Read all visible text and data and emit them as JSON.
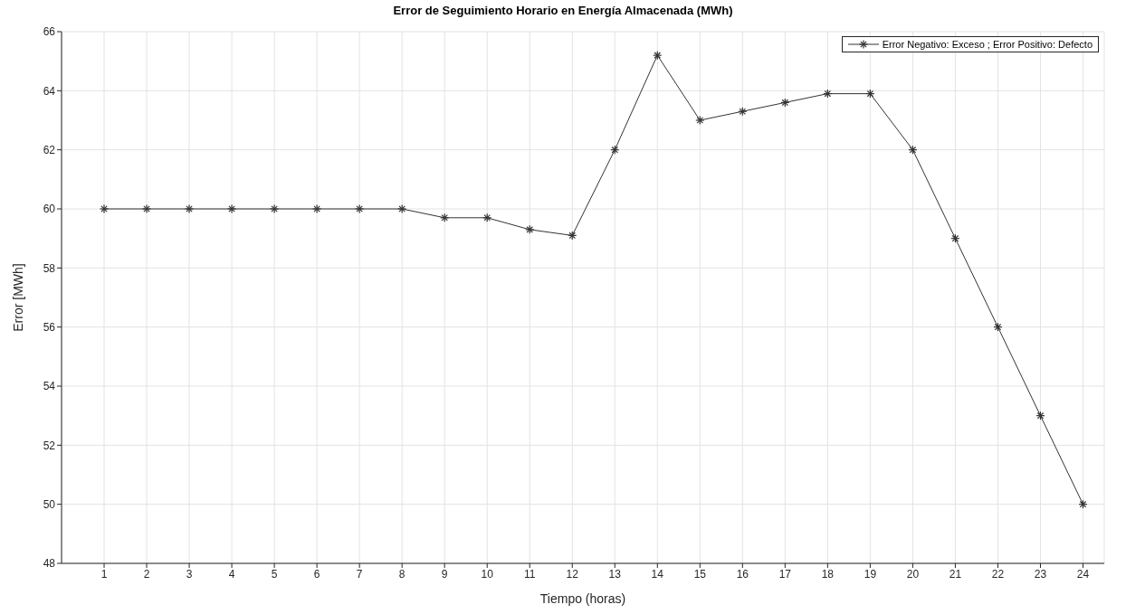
{
  "chart_data": {
    "type": "line",
    "title": "Error de Seguimiento Horario en Energía Almacenada (MWh)",
    "xlabel": "Tiempo (horas)",
    "ylabel": "Error [MWh]",
    "x": [
      1,
      2,
      3,
      4,
      5,
      6,
      7,
      8,
      9,
      10,
      11,
      12,
      13,
      14,
      15,
      16,
      17,
      18,
      19,
      20,
      21,
      22,
      23,
      24
    ],
    "series": [
      {
        "name": "Error Negativo: Exceso ; Error Positivo: Defecto",
        "color": "#333333",
        "values": [
          60,
          60,
          60,
          60,
          60,
          60,
          60,
          60,
          59.7,
          59.7,
          59.3,
          59.1,
          62,
          65.2,
          63,
          63.3,
          63.6,
          63.9,
          63.9,
          62,
          59,
          56,
          53,
          50
        ]
      }
    ],
    "xlim": [
      0,
      24.5
    ],
    "xticks": [
      1,
      2,
      3,
      4,
      5,
      6,
      7,
      8,
      9,
      10,
      11,
      12,
      13,
      14,
      15,
      16,
      17,
      18,
      19,
      20,
      21,
      22,
      23,
      24
    ],
    "ylim": [
      48,
      66
    ],
    "yticks": [
      48,
      50,
      52,
      54,
      56,
      58,
      60,
      62,
      64,
      66
    ],
    "grid": true,
    "legend": "top right",
    "marker": "cross",
    "line_style": "solid"
  }
}
